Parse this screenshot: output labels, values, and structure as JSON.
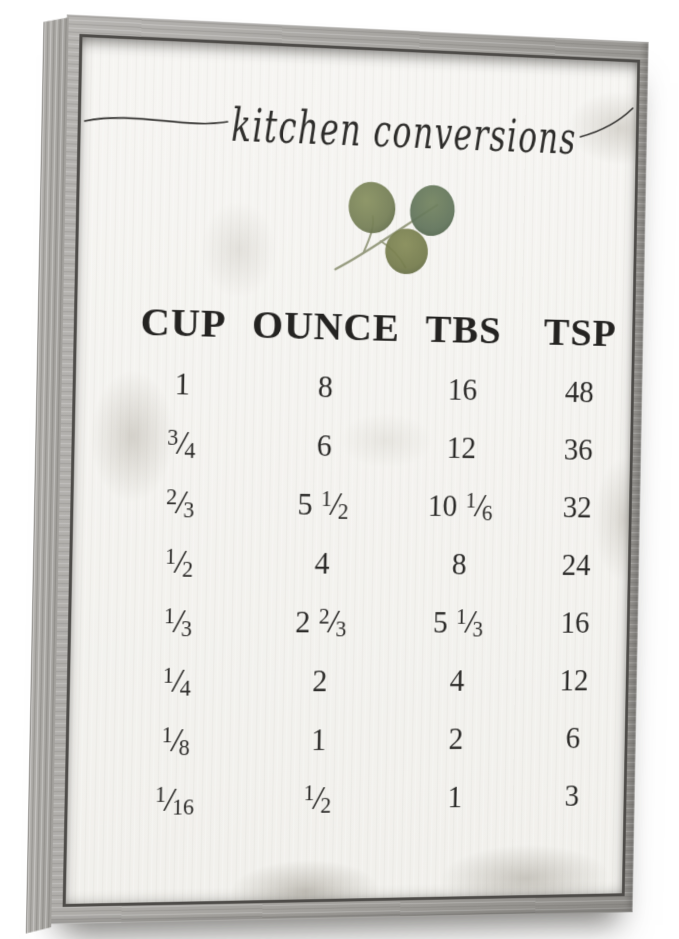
{
  "product": {
    "description": "gray wood framed farmhouse kitchen conversions wall sign",
    "frame_color": "#a6a4a0",
    "canvas_color": "#f4f3f0",
    "ink_color": "#2b2a28"
  },
  "sign": {
    "title": "kitchen conversions",
    "decoration": {
      "icon": "eucalyptus-leaves",
      "leaf_colors": [
        "#7d8660",
        "#68795c",
        "#7b814f"
      ],
      "stem_color": "#979c80"
    },
    "table": {
      "headers": [
        "CUP",
        "OUNCE",
        "TBS",
        "TSP"
      ],
      "rows": [
        [
          "1",
          "8",
          "16",
          "48"
        ],
        [
          "3/4",
          "6",
          "12",
          "36"
        ],
        [
          "2/3",
          "5 1/2",
          "10 1/6",
          "32"
        ],
        [
          "1/2",
          "4",
          "8",
          "24"
        ],
        [
          "1/3",
          "2 2/3",
          "5 1/3",
          "16"
        ],
        [
          "1/4",
          "2",
          "4",
          "12"
        ],
        [
          "1/8",
          "1",
          "2",
          "6"
        ],
        [
          "1/16",
          "1/2",
          "1",
          "3"
        ]
      ]
    }
  },
  "chart_data": {
    "type": "table",
    "title": "kitchen conversions",
    "columns": [
      "CUP",
      "OUNCE",
      "TBS",
      "TSP"
    ],
    "rows": [
      [
        "1",
        "8",
        "16",
        "48"
      ],
      [
        "3/4",
        "6",
        "12",
        "36"
      ],
      [
        "2/3",
        "5 1/2",
        "10 1/6",
        "32"
      ],
      [
        "1/2",
        "4",
        "8",
        "24"
      ],
      [
        "1/3",
        "2 2/3",
        "5 1/3",
        "16"
      ],
      [
        "1/4",
        "2",
        "4",
        "12"
      ],
      [
        "1/8",
        "1",
        "2",
        "6"
      ],
      [
        "1/16",
        "1/2",
        "1",
        "3"
      ]
    ]
  }
}
